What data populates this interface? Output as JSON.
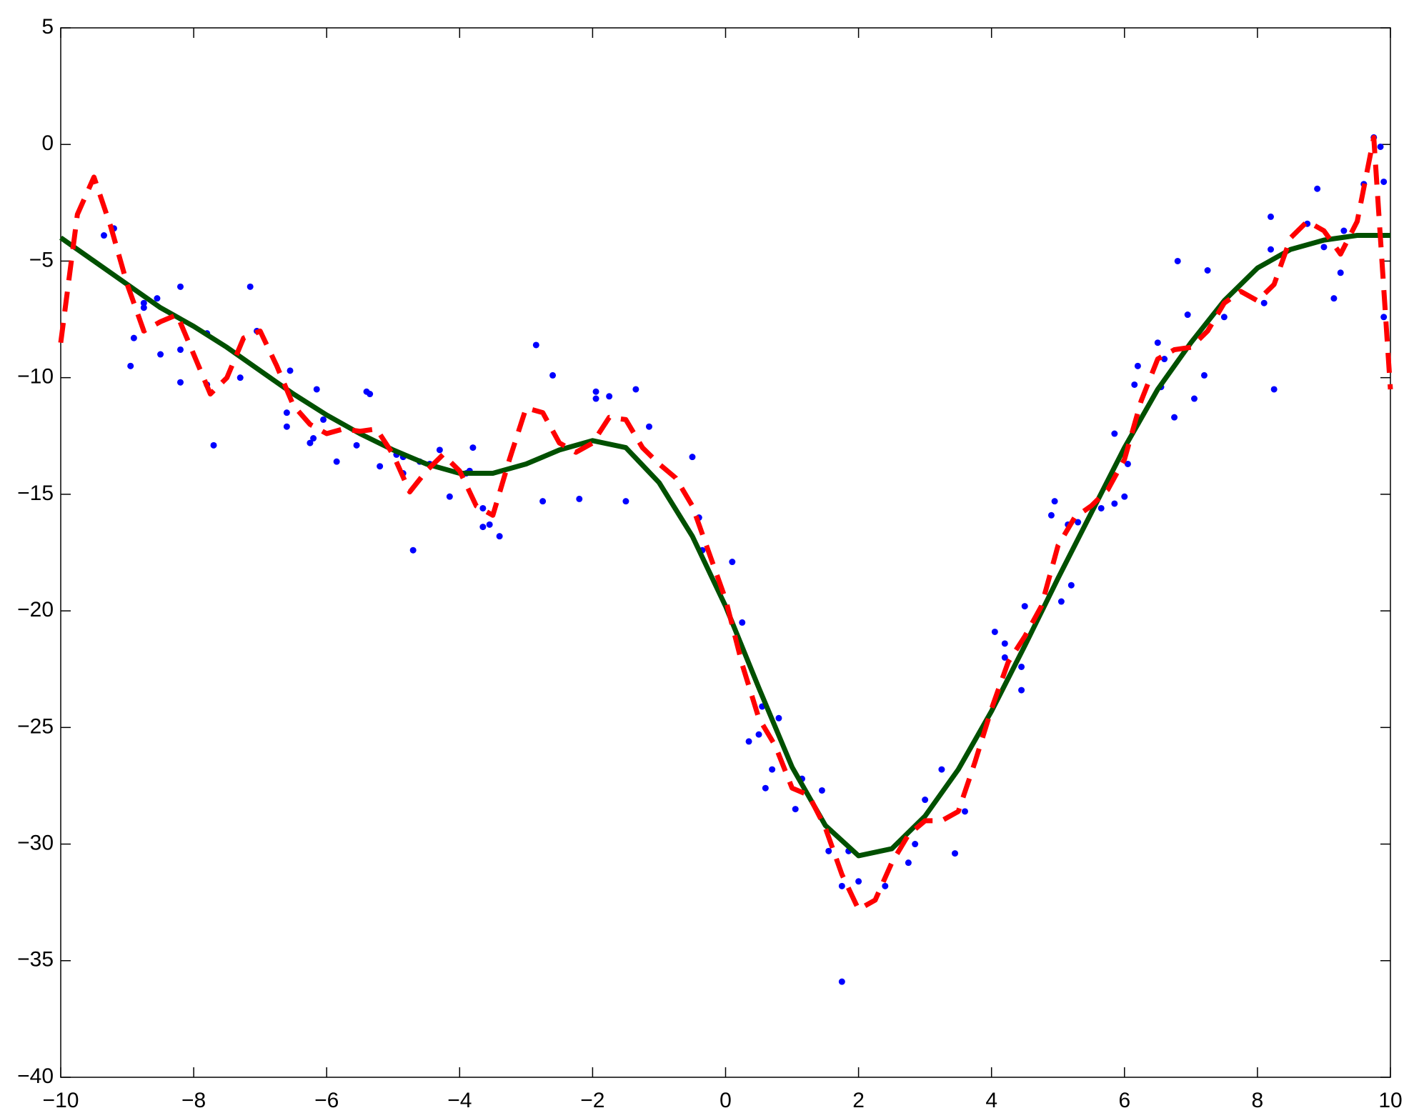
{
  "chart_data": {
    "type": "line",
    "grid": false,
    "xlim": [
      -10,
      10
    ],
    "ylim": [
      -40,
      5
    ],
    "xticks": [
      {
        "value": -10,
        "label": "−10"
      },
      {
        "value": -8,
        "label": "−8"
      },
      {
        "value": -6,
        "label": "−6"
      },
      {
        "value": -4,
        "label": "−4"
      },
      {
        "value": -2,
        "label": "−2"
      },
      0,
      2,
      4,
      6,
      8,
      10
    ],
    "yticks": [
      {
        "value": -40,
        "label": "−40"
      },
      {
        "value": -35,
        "label": "−35"
      },
      {
        "value": -30,
        "label": "−30"
      },
      {
        "value": -25,
        "label": "−25"
      },
      {
        "value": -20,
        "label": "−20"
      },
      {
        "value": -15,
        "label": "−15"
      },
      {
        "value": -10,
        "label": "−10"
      },
      {
        "value": -5,
        "label": "−5"
      },
      0,
      5
    ],
    "series": [
      {
        "style": "markers",
        "color": "#0000ff",
        "x": [
          -9.35,
          -9.2,
          -8.9,
          -8.95,
          -8.75,
          -8.75,
          -8.55,
          -8.5,
          -8.2,
          -8.2,
          -8.2,
          -7.8,
          -7.8,
          -7.7,
          -7.3,
          -7.15,
          -7.05,
          -6.6,
          -6.6,
          -6.55,
          -6.25,
          -6.2,
          -6.15,
          -6.05,
          -5.85,
          -5.55,
          -5.4,
          -5.35,
          -5.2,
          -4.95,
          -4.85,
          -4.85,
          -4.7,
          -4.6,
          -4.45,
          -4.3,
          -4.15,
          -3.9,
          -3.85,
          -3.8,
          -3.65,
          -3.65,
          -3.55,
          -3.4,
          -2.85,
          -2.75,
          -2.6,
          -2.2,
          -1.95,
          -1.95,
          -1.75,
          -1.5,
          -1.35,
          -1.15,
          -0.5,
          -0.35,
          -0.4,
          -0.1,
          0.1,
          0.25,
          0.35,
          0.5,
          0.55,
          0.6,
          0.7,
          0.8,
          1.05,
          1.15,
          1.45,
          1.55,
          1.75,
          1.75,
          1.85,
          2.0,
          2.4,
          2.75,
          2.85,
          3.0,
          3.25,
          3.45,
          3.6,
          4.05,
          4.2,
          4.2,
          4.45,
          4.45,
          4.5,
          4.9,
          4.95,
          5.05,
          5.15,
          5.2,
          5.3,
          5.65,
          5.85,
          5.85,
          6.0,
          6.05,
          6.15,
          6.2,
          6.5,
          6.55,
          6.6,
          6.75,
          6.8,
          6.95,
          7.05,
          7.2,
          7.25,
          7.5,
          8.1,
          8.2,
          8.2,
          8.25,
          8.75,
          8.9,
          9.0,
          9.15,
          9.25,
          9.3,
          9.6,
          9.75,
          9.85,
          9.9,
          9.9
        ],
        "values": [
          -3.9,
          -3.6,
          -8.3,
          -9.5,
          -7,
          -6.8,
          -6.6,
          -9,
          -6.1,
          -8.8,
          -10.2,
          -8.1,
          -10.3,
          -12.9,
          -10,
          -6.1,
          -8,
          -11.5,
          -12.1,
          -9.7,
          -12.8,
          -12.6,
          -10.5,
          -11.8,
          -13.6,
          -12.9,
          -10.6,
          -10.7,
          -13.8,
          -13.3,
          -13.4,
          -14.1,
          -17.4,
          -13.6,
          -13.7,
          -13.1,
          -15.1,
          -14.1,
          -14,
          -13,
          -15.6,
          -16.4,
          -16.3,
          -16.8,
          -8.6,
          -15.3,
          -9.9,
          -15.2,
          -10.6,
          -10.9,
          -10.8,
          -15.3,
          -10.5,
          -12.1,
          -13.4,
          -17.4,
          -16,
          -19,
          -17.9,
          -20.5,
          -25.6,
          -25.3,
          -24.1,
          -27.6,
          -26.8,
          -24.6,
          -28.5,
          -27.2,
          -27.7,
          -30.3,
          -31.8,
          -35.9,
          -30.3,
          -31.6,
          -31.8,
          -30.8,
          -30,
          -28.1,
          -26.8,
          -30.4,
          -28.6,
          -20.9,
          -21.4,
          -22,
          -22.4,
          -23.4,
          -19.8,
          -15.9,
          -15.3,
          -19.6,
          -16.3,
          -18.9,
          -16.2,
          -15.6,
          -12.4,
          -15.4,
          -15.1,
          -13.7,
          -10.3,
          -9.5,
          -8.5,
          -10.4,
          -9.2,
          -11.7,
          -5,
          -7.3,
          -10.9,
          -9.9,
          -5.4,
          -7.4,
          -6.8,
          -4.5,
          -3.1,
          -10.5,
          -3.4,
          -1.9,
          -4.4,
          -6.6,
          -5.5,
          -3.7,
          -1.7,
          0.3,
          -0.1,
          -1.6,
          -7.4
        ]
      },
      {
        "style": "solid",
        "color": "#005000",
        "x": [
          -10,
          -9.5,
          -9,
          -8.5,
          -8,
          -7.5,
          -7,
          -6.5,
          -6,
          -5.5,
          -5,
          -4.5,
          -4,
          -3.5,
          -3,
          -2.5,
          -2,
          -1.5,
          -1,
          -0.5,
          0,
          0.5,
          1,
          1.5,
          2,
          2.5,
          3,
          3.5,
          4,
          4.5,
          5,
          5.5,
          6,
          6.5,
          7,
          7.5,
          8,
          8.5,
          9,
          9.5,
          10
        ],
        "values": [
          -4,
          -5,
          -6,
          -7,
          -7.8,
          -8.7,
          -9.7,
          -10.7,
          -11.6,
          -12.4,
          -13.1,
          -13.7,
          -14.1,
          -14.1,
          -13.7,
          -13.1,
          -12.7,
          -13,
          -14.5,
          -16.8,
          -19.8,
          -23.3,
          -26.7,
          -29.2,
          -30.5,
          -30.2,
          -28.8,
          -26.8,
          -24.3,
          -21.5,
          -18.6,
          -15.8,
          -13,
          -10.5,
          -8.5,
          -6.7,
          -5.3,
          -4.5,
          -4.1,
          -3.9,
          -3.9
        ]
      },
      {
        "style": "dashed",
        "color": "#ff0000",
        "x": [
          -10,
          -9.75,
          -9.5,
          -9.25,
          -9,
          -8.75,
          -8.5,
          -8.25,
          -8,
          -7.75,
          -7.5,
          -7.25,
          -7,
          -6.75,
          -6.5,
          -6.25,
          -6,
          -5.75,
          -5.5,
          -5.25,
          -5,
          -4.75,
          -4.5,
          -4.25,
          -4,
          -3.75,
          -3.5,
          -3.25,
          -3,
          -2.75,
          -2.5,
          -2.25,
          -2,
          -1.75,
          -1.5,
          -1.25,
          -1,
          -0.75,
          -0.5,
          -0.25,
          0,
          0.25,
          0.5,
          0.75,
          1,
          1.25,
          1.5,
          1.75,
          2,
          2.25,
          2.5,
          2.75,
          3,
          3.25,
          3.5,
          3.75,
          4,
          4.25,
          4.5,
          4.75,
          5,
          5.25,
          5.5,
          5.75,
          6,
          6.25,
          6.5,
          6.75,
          7,
          7.25,
          7.5,
          7.75,
          8,
          8.25,
          8.5,
          8.75,
          9,
          9.25,
          9.5,
          9.75,
          10
        ],
        "values": [
          -8.5,
          -3,
          -1.4,
          -3.5,
          -6,
          -8,
          -7.6,
          -7.3,
          -9,
          -10.7,
          -10,
          -8.3,
          -8,
          -9.5,
          -11.2,
          -12,
          -12.4,
          -12.2,
          -12.3,
          -12.2,
          -13.3,
          -14.9,
          -14,
          -13.3,
          -14,
          -15.5,
          -15.9,
          -13.5,
          -11.3,
          -11.5,
          -12.8,
          -13.2,
          -12.8,
          -11.7,
          -11.8,
          -13,
          -13.7,
          -14.3,
          -15.5,
          -17.5,
          -19.5,
          -22.3,
          -24.6,
          -25.8,
          -27.6,
          -27.9,
          -29.3,
          -31.3,
          -32.8,
          -32.4,
          -30.8,
          -29.6,
          -29,
          -29,
          -28.6,
          -26.5,
          -24.2,
          -22.2,
          -21.1,
          -19.8,
          -17.2,
          -16,
          -15.5,
          -14.8,
          -13.5,
          -11,
          -9.2,
          -8.8,
          -8.7,
          -8,
          -6.8,
          -6.3,
          -6.7,
          -6,
          -4,
          -3.3,
          -3.7,
          -4.7,
          -3.3,
          0.3,
          -10.5
        ]
      }
    ]
  }
}
